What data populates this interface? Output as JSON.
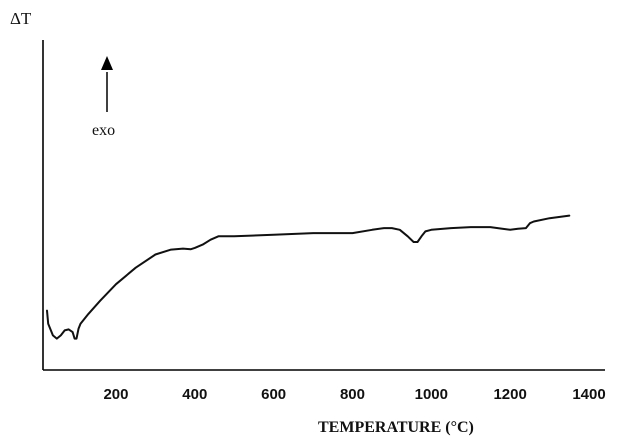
{
  "chart_data": {
    "type": "line",
    "title": "",
    "xlabel": "TEMPERATURE (°C)",
    "ylabel": "ΔT",
    "xlim": [
      20,
      1400
    ],
    "xticks": [
      200,
      400,
      600,
      800,
      1000,
      1200,
      1400
    ],
    "ylim": [
      0,
      100
    ],
    "grid": false,
    "annotation": {
      "text": "exo",
      "arrow": "up"
    },
    "series": [
      {
        "x": [
          25,
          28,
          40,
          50,
          60,
          70,
          80,
          90,
          95,
          100,
          105,
          110,
          130,
          160,
          200,
          250,
          300,
          340,
          370,
          390,
          400,
          420,
          440,
          460,
          500,
          600,
          700,
          800,
          850,
          880,
          900,
          920,
          940,
          955,
          965,
          975,
          985,
          1000,
          1050,
          1100,
          1150,
          1180,
          1200,
          1220,
          1240,
          1250,
          1260,
          1300,
          1350
        ],
        "y": [
          18,
          14,
          10.5,
          9.5,
          10.5,
          12,
          12.3,
          11.5,
          9.5,
          9.5,
          12.5,
          14,
          17,
          21,
          26,
          31,
          35,
          36.5,
          36.8,
          36.6,
          37,
          38,
          39.5,
          40.5,
          40.5,
          41,
          41.5,
          41.5,
          42.5,
          43,
          43,
          42.5,
          40.5,
          38.8,
          38.8,
          40.5,
          42,
          42.5,
          43,
          43.3,
          43.3,
          42.8,
          42.5,
          42.8,
          43,
          44.5,
          45,
          46,
          46.8
        ]
      }
    ]
  }
}
